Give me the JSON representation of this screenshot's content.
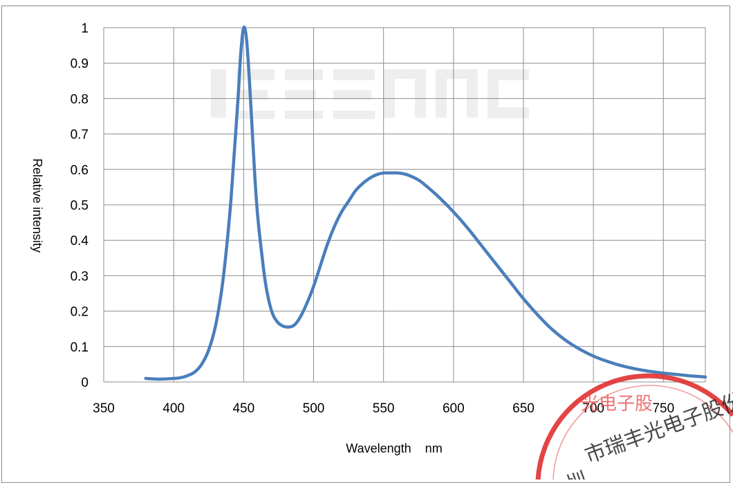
{
  "chart_data": {
    "type": "line",
    "title": "",
    "xlabel": "Wavelength    nm",
    "ylabel": "Relative intensity",
    "xlim": [
      350,
      780
    ],
    "ylim": [
      0,
      1
    ],
    "x_ticks": [
      350,
      400,
      450,
      500,
      550,
      600,
      650,
      700,
      750
    ],
    "y_ticks": [
      0,
      0.1,
      0.2,
      0.3,
      0.4,
      0.5,
      0.6,
      0.7,
      0.8,
      0.9,
      1
    ],
    "x_tick_labels": [
      "350",
      "400",
      "450",
      "500",
      "550",
      "600",
      "650",
      "700",
      "750"
    ],
    "y_tick_labels": [
      "0",
      "0.1",
      "0.2",
      "0.3",
      "0.4",
      "0.5",
      "0.6",
      "0.7",
      "0.8",
      "0.9",
      "1"
    ],
    "grid": true,
    "legend": "none",
    "series": [
      {
        "color": "#4a7ebb",
        "x": [
          380,
          390,
          400,
          405,
          410,
          415,
          420,
          425,
          430,
          435,
          440,
          443,
          446,
          448,
          450,
          452,
          454,
          456,
          458,
          460,
          463,
          466,
          470,
          474,
          478,
          482,
          486,
          490,
          495,
          500,
          505,
          510,
          515,
          520,
          525,
          530,
          535,
          540,
          545,
          550,
          555,
          560,
          565,
          570,
          575,
          580,
          590,
          600,
          610,
          620,
          630,
          640,
          650,
          660,
          670,
          680,
          690,
          700,
          710,
          720,
          730,
          740,
          750,
          760,
          770,
          780
        ],
        "y": [
          0.01,
          0.008,
          0.01,
          0.012,
          0.018,
          0.028,
          0.05,
          0.09,
          0.16,
          0.28,
          0.47,
          0.63,
          0.8,
          0.93,
          1.0,
          0.97,
          0.86,
          0.72,
          0.58,
          0.47,
          0.36,
          0.27,
          0.2,
          0.17,
          0.158,
          0.155,
          0.16,
          0.18,
          0.22,
          0.27,
          0.33,
          0.39,
          0.44,
          0.48,
          0.51,
          0.54,
          0.56,
          0.575,
          0.585,
          0.59,
          0.59,
          0.59,
          0.587,
          0.58,
          0.57,
          0.555,
          0.52,
          0.48,
          0.435,
          0.385,
          0.335,
          0.285,
          0.235,
          0.19,
          0.15,
          0.118,
          0.093,
          0.073,
          0.058,
          0.046,
          0.037,
          0.03,
          0.025,
          0.021,
          0.017,
          0.014
        ]
      }
    ]
  },
  "watermarks": {
    "stamp_text": "深圳市瑞丰光电子股份有限公司"
  }
}
